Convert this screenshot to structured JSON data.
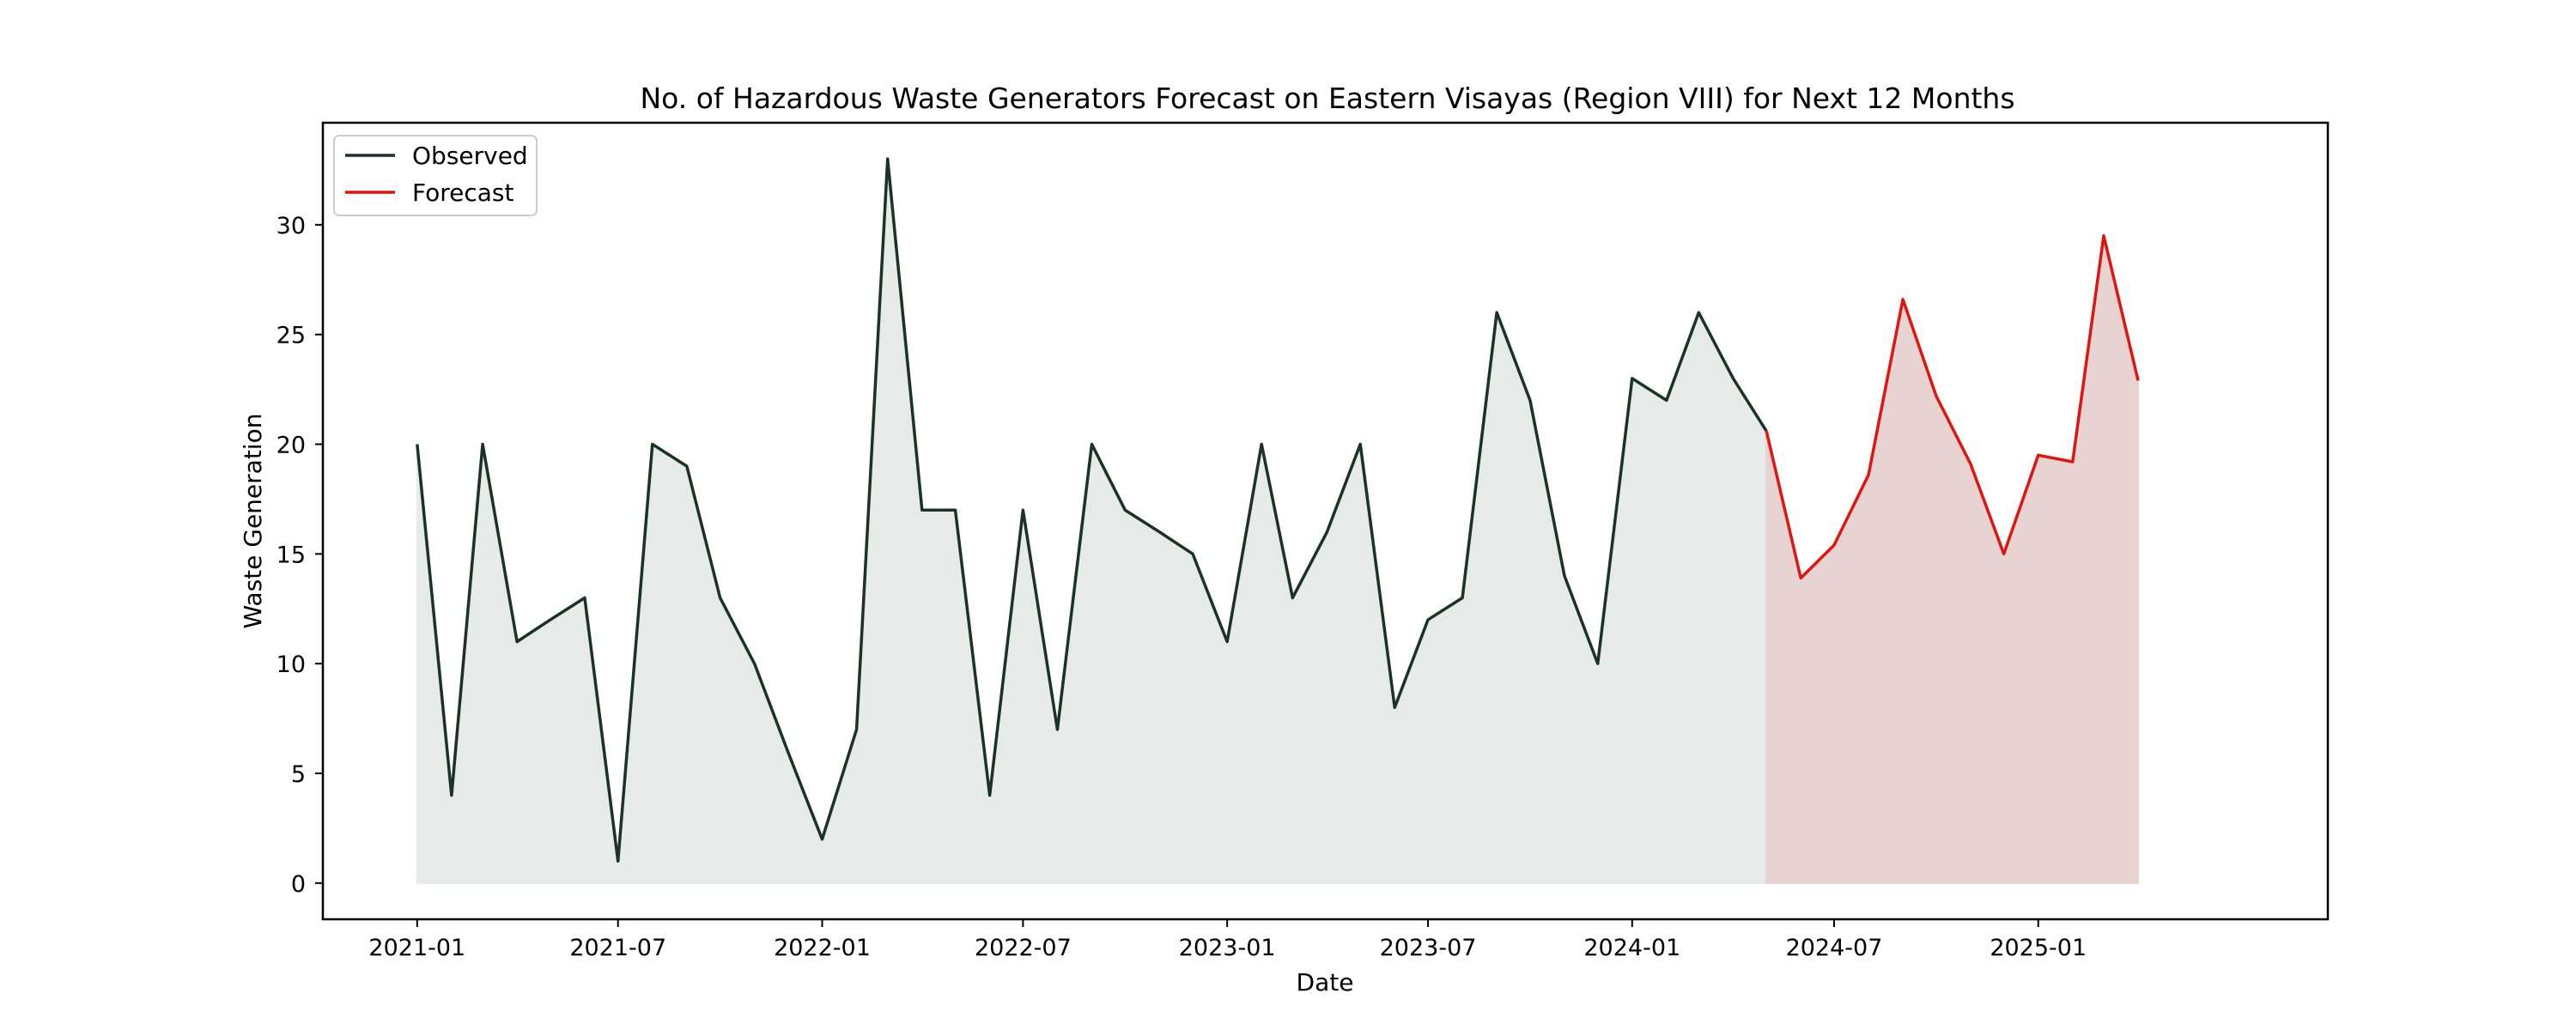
{
  "chart_data": {
    "type": "area",
    "title": "No. of Hazardous Waste Generators Forecast on Eastern Visayas (Region VIII) for Next 12 Months",
    "xlabel": "Date",
    "ylabel": "Waste Generation",
    "xlim": [
      "2020-10-08",
      "2025-09-19"
    ],
    "ylim": [
      -1.65,
      34.65
    ],
    "x_ticks": [
      "2021-01",
      "2021-07",
      "2022-01",
      "2022-07",
      "2023-01",
      "2023-07",
      "2024-01",
      "2024-07",
      "2025-01"
    ],
    "y_ticks": [
      0,
      5,
      10,
      15,
      20,
      25,
      30
    ],
    "legend": {
      "position": "top-left",
      "entries": [
        "Observed",
        "Forecast"
      ]
    },
    "grid": false,
    "series": [
      {
        "name": "Observed",
        "color": "#1a3326",
        "fill_color": "#e6eae8",
        "x": [
          "2021-01",
          "2021-02",
          "2021-03",
          "2021-04",
          "2021-05",
          "2021-06",
          "2021-07",
          "2021-08",
          "2021-09",
          "2021-10",
          "2021-11",
          "2021-12",
          "2022-01",
          "2022-02",
          "2022-03",
          "2022-04",
          "2022-05",
          "2022-06",
          "2022-07",
          "2022-08",
          "2022-09",
          "2022-10",
          "2022-11",
          "2022-12",
          "2023-01",
          "2023-02",
          "2023-03",
          "2023-04",
          "2023-05",
          "2023-06",
          "2023-07",
          "2023-08",
          "2023-09",
          "2023-10",
          "2023-11",
          "2023-12",
          "2024-01",
          "2024-02",
          "2024-03",
          "2024-04",
          "2024-05"
        ],
        "values": [
          20,
          4,
          20,
          11,
          12,
          13,
          1,
          20,
          19,
          13,
          10,
          6,
          2,
          7,
          33,
          17,
          17,
          4,
          17,
          7,
          20,
          17,
          16,
          15,
          11,
          20,
          13,
          16,
          20,
          8,
          12,
          13,
          26,
          22,
          14,
          10,
          23,
          22,
          26,
          23,
          20.6
        ]
      },
      {
        "name": "Forecast",
        "color": "#e0150f",
        "fill_color": "#e8d3d3",
        "x": [
          "2024-05",
          "2024-06",
          "2024-07",
          "2024-08",
          "2024-09",
          "2024-10",
          "2024-11",
          "2024-12",
          "2025-01",
          "2025-02",
          "2025-03",
          "2025-04"
        ],
        "values": [
          20.6,
          13.9,
          15.4,
          18.6,
          26.6,
          22.2,
          19.1,
          15.0,
          19.5,
          19.2,
          29.5,
          22.9
        ]
      }
    ]
  }
}
